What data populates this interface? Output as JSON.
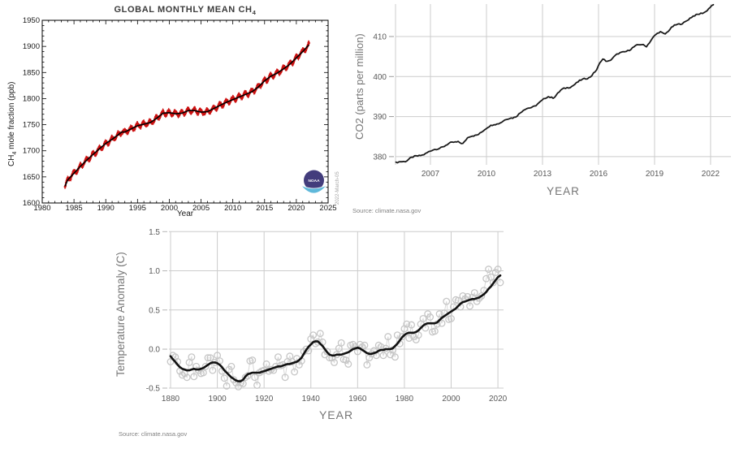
{
  "chart_data": [
    {
      "id": "ch4",
      "type": "scatter",
      "title_main": "GLOBAL MONTHLY MEAN CH",
      "title_sub": "4",
      "ylabel_main": "CH",
      "ylabel_sub": "4",
      "ylabel_rest": " mole fraction (ppb)",
      "xlabel": "Year",
      "date_stamp": "2022-March-05",
      "logo": "noaa-logo",
      "xlim": [
        1980,
        2025
      ],
      "ylim": [
        1600,
        1950
      ],
      "x_ticks": [
        1980,
        1985,
        1990,
        1995,
        2000,
        2005,
        2010,
        2015,
        2020,
        2025
      ],
      "y_ticks": [
        1600,
        1650,
        1700,
        1750,
        1800,
        1850,
        1900,
        1950
      ],
      "x_minor_step": 1,
      "y_minor_step": 10,
      "frame": "box-with-inward-ticks",
      "point_color": "#cc1111",
      "trend_color": "#000000",
      "series": {
        "description": "monthly global mean CH4 (red points with error bars) plus deseasonalized trend (black)",
        "monthly_step_years": 0.08333,
        "range_years": [
          1983.58,
          2022.0
        ],
        "seasonal_amplitude_ppb": 4.0,
        "scatter_noise_ppb": 3.0,
        "annual_trend": [
          [
            1983.5,
            1630
          ],
          [
            1984,
            1644
          ],
          [
            1985,
            1657
          ],
          [
            1986,
            1670
          ],
          [
            1987,
            1682
          ],
          [
            1988,
            1693
          ],
          [
            1989,
            1704
          ],
          [
            1990,
            1714
          ],
          [
            1991,
            1722
          ],
          [
            1992,
            1731
          ],
          [
            1992.5,
            1736
          ],
          [
            1993,
            1736
          ],
          [
            1994,
            1742
          ],
          [
            1995,
            1748
          ],
          [
            1996,
            1751
          ],
          [
            1997,
            1754
          ],
          [
            1998,
            1762
          ],
          [
            1999,
            1772
          ],
          [
            2000,
            1773
          ],
          [
            2001,
            1771
          ],
          [
            2002,
            1772
          ],
          [
            2003,
            1777
          ],
          [
            2004,
            1777
          ],
          [
            2005,
            1774
          ],
          [
            2006,
            1775
          ],
          [
            2007,
            1781
          ],
          [
            2008,
            1787
          ],
          [
            2009,
            1793
          ],
          [
            2010,
            1798
          ],
          [
            2011,
            1803
          ],
          [
            2012,
            1808
          ],
          [
            2013,
            1813
          ],
          [
            2014,
            1822
          ],
          [
            2015,
            1834
          ],
          [
            2016,
            1843
          ],
          [
            2017,
            1849
          ],
          [
            2018,
            1857
          ],
          [
            2019,
            1866
          ],
          [
            2020,
            1878
          ],
          [
            2021,
            1890
          ],
          [
            2022,
            1903
          ]
        ]
      }
    },
    {
      "id": "co2",
      "type": "line",
      "ylabel": "CO2 (parts per million)",
      "xlabel": "YEAR",
      "source": "Source: climate.nasa.gov",
      "xlim": [
        2005.13,
        2023.09
      ],
      "ylim": [
        377.95,
        418.11
      ],
      "x_ticks": [
        2007,
        2010,
        2013,
        2016,
        2019,
        2022
      ],
      "y_ticks": [
        380,
        390,
        400,
        410
      ],
      "grid": true,
      "grid_color": "#cccccc",
      "line_color": "#1b1b1b",
      "tick_label_color": "#5a5a5a",
      "series": {
        "description": "monthly mean CO2 concentration, ppm",
        "monthly_step_years": 0.08333,
        "noise_ppm": 0.32,
        "seasonal_amplitude_ppm": 0.22,
        "points": [
          [
            2005.15,
            378.3
          ],
          [
            2005.4,
            378.9
          ],
          [
            2005.7,
            379.0
          ],
          [
            2006,
            379.6
          ],
          [
            2006.5,
            380.5
          ],
          [
            2007,
            381.2
          ],
          [
            2007.5,
            382.3
          ],
          [
            2008,
            383.1
          ],
          [
            2008.5,
            383.9
          ],
          [
            2008.75,
            383.3
          ],
          [
            2009,
            384.6
          ],
          [
            2009.5,
            385.6
          ],
          [
            2010,
            386.9
          ],
          [
            2010.4,
            388.2
          ],
          [
            2010.8,
            388.6
          ],
          [
            2011,
            389.0
          ],
          [
            2011.5,
            390.0
          ],
          [
            2012,
            391.5
          ],
          [
            2012.5,
            392.6
          ],
          [
            2013,
            393.9
          ],
          [
            2013.3,
            395.0
          ],
          [
            2013.6,
            394.9
          ],
          [
            2014,
            396.5
          ],
          [
            2014.5,
            397.6
          ],
          [
            2015,
            398.8
          ],
          [
            2015.5,
            399.9
          ],
          [
            2015.9,
            401.6
          ],
          [
            2016.2,
            404.3
          ],
          [
            2016.5,
            403.9
          ],
          [
            2017,
            405.4
          ],
          [
            2017.5,
            406.5
          ],
          [
            2018,
            407.5
          ],
          [
            2018.35,
            408.1
          ],
          [
            2018.55,
            407.7
          ],
          [
            2019,
            410.0
          ],
          [
            2019.3,
            411.2
          ],
          [
            2019.55,
            410.8
          ],
          [
            2020,
            412.4
          ],
          [
            2020.5,
            413.5
          ],
          [
            2021,
            414.7
          ],
          [
            2021.5,
            416.0
          ],
          [
            2021.75,
            416.3
          ],
          [
            2022.2,
            417.9
          ]
        ]
      }
    },
    {
      "id": "temp",
      "type": "scatter+line",
      "ylabel": "Temperature Anomaly (C)",
      "xlabel": "YEAR",
      "source": "Source: climate.nasa.gov",
      "xlim": [
        1879.3,
        2022.4
      ],
      "ylim": [
        -0.497,
        1.503
      ],
      "x_ticks": [
        1880,
        1900,
        1920,
        1940,
        1960,
        1980,
        2000,
        2020
      ],
      "y_ticks": [
        -0.5,
        0.0,
        0.5,
        1.0,
        1.5
      ],
      "y_tick_labels": [
        "-0.5",
        "0.0",
        "0.5",
        "1.0",
        "1.5"
      ],
      "grid": true,
      "grid_color": "#cccccc",
      "annual_color": "#c6c6c6",
      "annual_line_color": "#d8d8d8",
      "lowess_color": "#111111",
      "tick_label_color": "#5a5a5a",
      "start_year": 1880,
      "annual": [
        -0.16,
        -0.08,
        -0.1,
        -0.16,
        -0.28,
        -0.33,
        -0.31,
        -0.36,
        -0.17,
        -0.1,
        -0.35,
        -0.22,
        -0.27,
        -0.31,
        -0.3,
        -0.22,
        -0.11,
        -0.11,
        -0.27,
        -0.17,
        -0.08,
        -0.15,
        -0.28,
        -0.37,
        -0.47,
        -0.26,
        -0.22,
        -0.39,
        -0.43,
        -0.48,
        -0.43,
        -0.44,
        -0.36,
        -0.34,
        -0.15,
        -0.14,
        -0.36,
        -0.46,
        -0.3,
        -0.28,
        -0.27,
        -0.19,
        -0.28,
        -0.26,
        -0.27,
        -0.22,
        -0.1,
        -0.21,
        -0.2,
        -0.36,
        -0.16,
        -0.09,
        -0.16,
        -0.29,
        -0.12,
        -0.2,
        -0.15,
        -0.03,
        0.0,
        -0.02,
        0.13,
        0.18,
        0.07,
        0.09,
        0.2,
        0.09,
        -0.07,
        -0.03,
        -0.11,
        -0.11,
        -0.17,
        -0.07,
        0.01,
        0.08,
        -0.13,
        -0.14,
        -0.19,
        0.05,
        0.06,
        0.03,
        -0.03,
        0.06,
        0.03,
        0.05,
        -0.2,
        -0.11,
        -0.06,
        -0.02,
        -0.08,
        0.05,
        0.03,
        -0.08,
        0.01,
        0.16,
        -0.07,
        -0.01,
        -0.1,
        0.18,
        0.07,
        0.16,
        0.26,
        0.32,
        0.14,
        0.31,
        0.16,
        0.12,
        0.18,
        0.32,
        0.39,
        0.27,
        0.45,
        0.41,
        0.22,
        0.23,
        0.32,
        0.45,
        0.33,
        0.46,
        0.61,
        0.38,
        0.39,
        0.54,
        0.63,
        0.62,
        0.54,
        0.68,
        0.64,
        0.67,
        0.55,
        0.66,
        0.72,
        0.61,
        0.65,
        0.68,
        0.75,
        0.9,
        1.02,
        0.92,
        0.85,
        0.98,
        1.02,
        0.85
      ],
      "lowess": [
        -0.09,
        -0.13,
        -0.16,
        -0.2,
        -0.23,
        -0.25,
        -0.26,
        -0.27,
        -0.27,
        -0.26,
        -0.25,
        -0.26,
        -0.26,
        -0.25,
        -0.24,
        -0.22,
        -0.2,
        -0.18,
        -0.17,
        -0.17,
        -0.18,
        -0.2,
        -0.23,
        -0.27,
        -0.3,
        -0.33,
        -0.36,
        -0.38,
        -0.4,
        -0.41,
        -0.41,
        -0.39,
        -0.35,
        -0.32,
        -0.31,
        -0.3,
        -0.3,
        -0.3,
        -0.3,
        -0.29,
        -0.28,
        -0.27,
        -0.26,
        -0.25,
        -0.24,
        -0.23,
        -0.22,
        -0.22,
        -0.21,
        -0.2,
        -0.19,
        -0.19,
        -0.18,
        -0.17,
        -0.16,
        -0.14,
        -0.11,
        -0.06,
        -0.01,
        0.03,
        0.06,
        0.09,
        0.1,
        0.1,
        0.07,
        0.04,
        0.0,
        -0.04,
        -0.07,
        -0.08,
        -0.08,
        -0.07,
        -0.07,
        -0.07,
        -0.06,
        -0.05,
        -0.04,
        -0.02,
        0.0,
        0.01,
        0.02,
        0.01,
        -0.01,
        -0.03,
        -0.05,
        -0.06,
        -0.06,
        -0.05,
        -0.04,
        -0.02,
        -0.01,
        -0.01,
        0.0,
        0.0,
        0.0,
        0.01,
        0.04,
        0.07,
        0.11,
        0.15,
        0.18,
        0.2,
        0.21,
        0.21,
        0.21,
        0.22,
        0.24,
        0.27,
        0.3,
        0.32,
        0.33,
        0.33,
        0.33,
        0.33,
        0.34,
        0.37,
        0.4,
        0.42,
        0.44,
        0.46,
        0.48,
        0.5,
        0.52,
        0.55,
        0.58,
        0.6,
        0.61,
        0.62,
        0.63,
        0.64,
        0.64,
        0.65,
        0.66,
        0.68,
        0.7,
        0.73,
        0.77,
        0.8,
        0.84,
        0.88,
        0.92,
        0.94
      ]
    }
  ],
  "noaa_logo": {
    "text": "NOAA",
    "circle_color": "#433d7c",
    "swoosh_color": "#5fb8da",
    "text_color": "#ffffff"
  }
}
